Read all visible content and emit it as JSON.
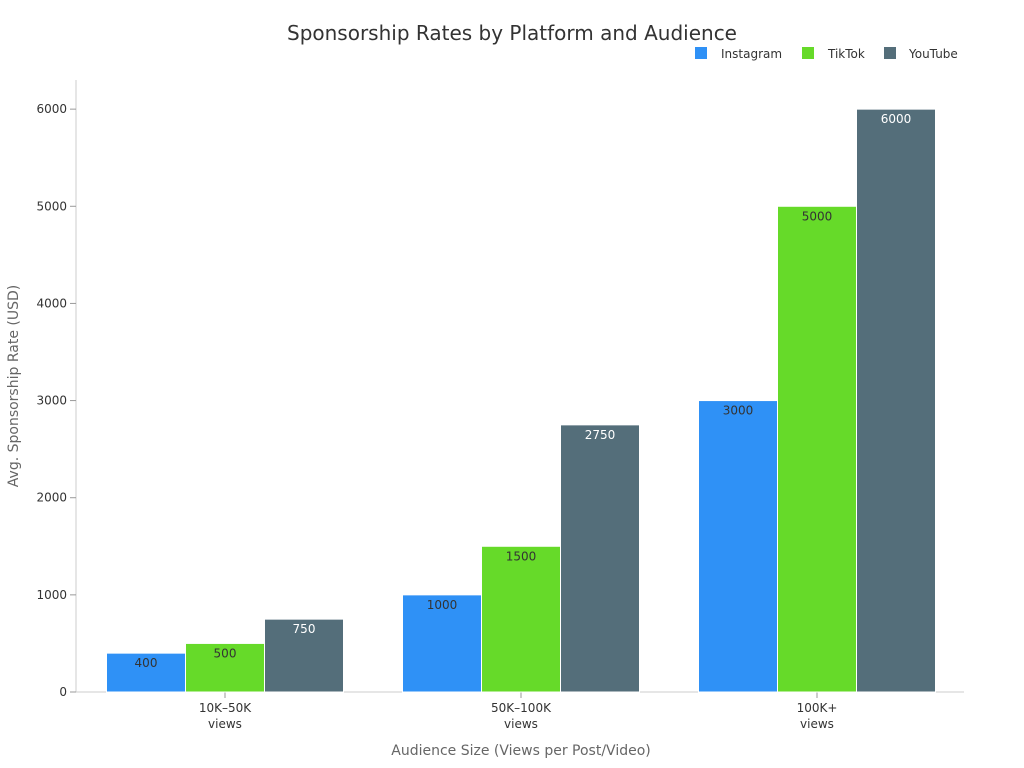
{
  "chart_data": {
    "type": "bar",
    "title": "Sponsorship Rates by Platform and Audience",
    "xlabel": "Audience Size (Views per Post/Video)",
    "ylabel": "Avg. Sponsorship Rate (USD)",
    "categories": [
      [
        "10K–50K",
        "views"
      ],
      [
        "50K–100K",
        "views"
      ],
      [
        "100K+",
        "views"
      ]
    ],
    "series": [
      {
        "name": "Instagram",
        "color": "#2f91f6",
        "label_color": "#333333",
        "values": [
          400,
          1000,
          3000
        ]
      },
      {
        "name": "TikTok",
        "color": "#66da29",
        "label_color": "#333333",
        "values": [
          500,
          1500,
          5000
        ]
      },
      {
        "name": "YouTube",
        "color": "#546e7a",
        "label_color": "#ffffff",
        "values": [
          750,
          2750,
          6000
        ]
      }
    ],
    "ylim": [
      0,
      6300
    ],
    "yticks": [
      0,
      1000,
      2000,
      3000,
      4000,
      5000,
      6000
    ],
    "grid": false,
    "legend_position": "top-right"
  }
}
